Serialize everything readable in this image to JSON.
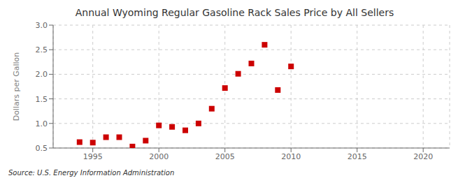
{
  "chart_data": {
    "type": "scatter",
    "title": "Annual Wyoming Regular Gasoline Rack Sales Price by All Sellers",
    "ylabel": "Dollars per Gallon",
    "annotations": [
      "Source: U.S. Energy Information Administration"
    ],
    "x": [
      1994,
      1995,
      1996,
      1997,
      1998,
      1999,
      2000,
      2001,
      2002,
      2003,
      2004,
      2005,
      2006,
      2007,
      2008,
      2009,
      2010
    ],
    "values": [
      0.62,
      0.61,
      0.72,
      0.72,
      0.53,
      0.65,
      0.96,
      0.93,
      0.86,
      1.0,
      1.3,
      1.72,
      2.01,
      2.22,
      2.6,
      1.68,
      2.16
    ],
    "color": "#cc0000",
    "marker": "square",
    "xlim": [
      1992,
      2022
    ],
    "ylim": [
      0.5,
      3.0
    ],
    "xticks": [
      1995,
      2000,
      2005,
      2010,
      2015,
      2020
    ],
    "yticks": [
      0.5,
      {
        "value": 1.0,
        "label": "1.0"
      },
      1.5,
      {
        "value": 2.0,
        "label": "2.0"
      },
      2.5,
      {
        "value": 3.0,
        "label": "3.0"
      }
    ],
    "grid": true
  }
}
